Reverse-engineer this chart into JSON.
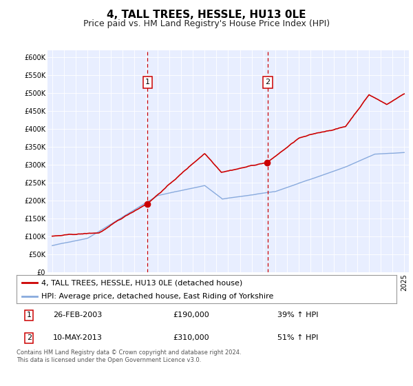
{
  "title": "4, TALL TREES, HESSLE, HU13 0LE",
  "subtitle": "Price paid vs. HM Land Registry's House Price Index (HPI)",
  "ylim": [
    0,
    620000
  ],
  "yticks": [
    0,
    50000,
    100000,
    150000,
    200000,
    250000,
    300000,
    350000,
    400000,
    450000,
    500000,
    550000,
    600000
  ],
  "ytick_labels": [
    "£0",
    "£50K",
    "£100K",
    "£150K",
    "£200K",
    "£250K",
    "£300K",
    "£350K",
    "£400K",
    "£450K",
    "£500K",
    "£550K",
    "£600K"
  ],
  "background_color": "#e8eeff",
  "red_line_color": "#cc0000",
  "blue_line_color": "#88aadd",
  "vline_color": "#cc0000",
  "sale1_year": 2003.12,
  "sale1_price": 190000,
  "sale2_year": 2013.37,
  "sale2_price": 310000,
  "legend_label_red": "4, TALL TREES, HESSLE, HU13 0LE (detached house)",
  "legend_label_blue": "HPI: Average price, detached house, East Riding of Yorkshire",
  "table_row1": [
    "1",
    "26-FEB-2003",
    "£190,000",
    "39% ↑ HPI"
  ],
  "table_row2": [
    "2",
    "10-MAY-2013",
    "£310,000",
    "51% ↑ HPI"
  ],
  "footnote": "Contains HM Land Registry data © Crown copyright and database right 2024.\nThis data is licensed under the Open Government Licence v3.0.",
  "title_fontsize": 11,
  "subtitle_fontsize": 9,
  "tick_fontsize": 7,
  "legend_fontsize": 8,
  "table_fontsize": 8,
  "footnote_fontsize": 6
}
